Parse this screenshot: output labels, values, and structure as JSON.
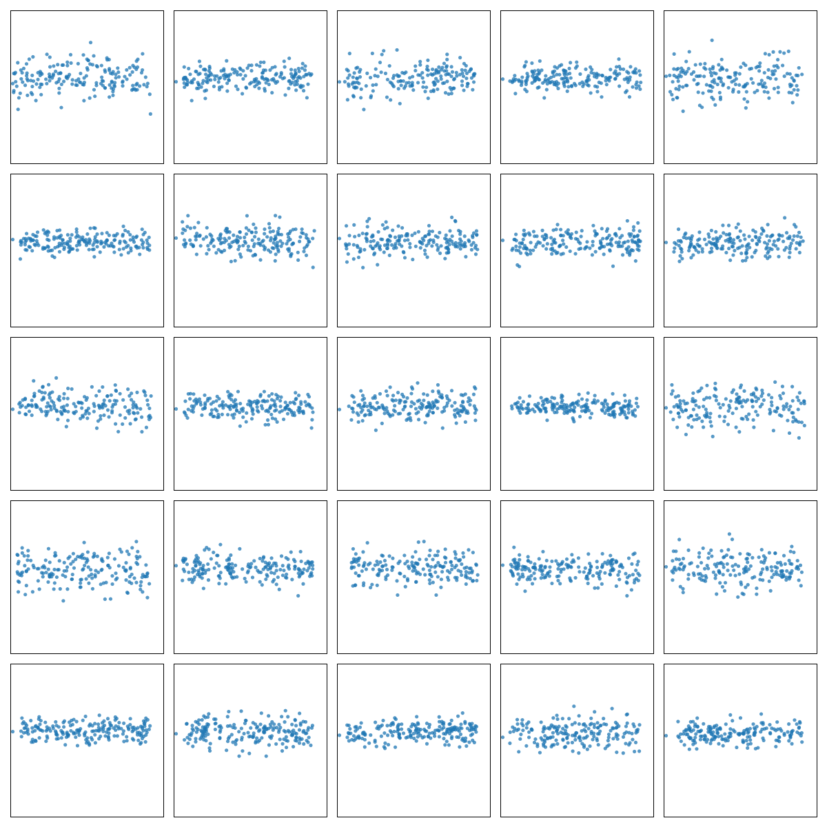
{
  "figure": {
    "rows": 5,
    "cols": 5,
    "point_color": "#1f77b4",
    "point_opacity": 0.75,
    "axes_visible": false,
    "ticks_visible": false
  },
  "chart_data": [
    {
      "type": "scatter",
      "panel": 1,
      "n": 180,
      "seed": 101,
      "xlim": [
        0,
        1
      ],
      "ylim": [
        -1,
        1
      ],
      "x_range": [
        0,
        0.93
      ],
      "y_center": 0.12,
      "y_spread": 0.16,
      "edge_point": true
    },
    {
      "type": "scatter",
      "panel": 2,
      "n": 190,
      "seed": 102,
      "xlim": [
        0,
        1
      ],
      "ylim": [
        -1,
        1
      ],
      "x_range": [
        0.05,
        0.92
      ],
      "y_center": 0.12,
      "y_spread": 0.1,
      "edge_point": true
    },
    {
      "type": "scatter",
      "panel": 3,
      "n": 180,
      "seed": 103,
      "xlim": [
        0,
        1
      ],
      "ylim": [
        -1,
        1
      ],
      "x_range": [
        0.03,
        0.92
      ],
      "y_center": 0.12,
      "y_spread": 0.14,
      "edge_point": true
    },
    {
      "type": "scatter",
      "panel": 4,
      "n": 190,
      "seed": 104,
      "xlim": [
        0,
        1
      ],
      "ylim": [
        -1,
        1
      ],
      "x_range": [
        0.04,
        0.93
      ],
      "y_center": 0.12,
      "y_spread": 0.1,
      "edge_point": true
    },
    {
      "type": "scatter",
      "panel": 5,
      "n": 180,
      "seed": 105,
      "xlim": [
        0,
        1
      ],
      "ylim": [
        -1,
        1
      ],
      "x_range": [
        0.02,
        0.93
      ],
      "y_center": 0.12,
      "y_spread": 0.17,
      "edge_point": true
    },
    {
      "type": "scatter",
      "panel": 6,
      "n": 190,
      "seed": 106,
      "xlim": [
        0,
        1
      ],
      "ylim": [
        -1,
        1
      ],
      "x_range": [
        0.05,
        0.92
      ],
      "y_center": 0.11,
      "y_spread": 0.1,
      "edge_point": true
    },
    {
      "type": "scatter",
      "panel": 7,
      "n": 190,
      "seed": 107,
      "xlim": [
        0,
        1
      ],
      "ylim": [
        -1,
        1
      ],
      "x_range": [
        0.04,
        0.93
      ],
      "y_center": 0.11,
      "y_spread": 0.12,
      "edge_point": true
    },
    {
      "type": "scatter",
      "panel": 8,
      "n": 190,
      "seed": 108,
      "xlim": [
        0,
        1
      ],
      "ylim": [
        -1,
        1
      ],
      "x_range": [
        0.04,
        0.93
      ],
      "y_center": 0.11,
      "y_spread": 0.12,
      "edge_point": true
    },
    {
      "type": "scatter",
      "panel": 9,
      "n": 190,
      "seed": 109,
      "xlim": [
        0,
        1
      ],
      "ylim": [
        -1,
        1
      ],
      "x_range": [
        0.06,
        0.93
      ],
      "y_center": 0.11,
      "y_spread": 0.11,
      "edge_point": true
    },
    {
      "type": "scatter",
      "panel": 10,
      "n": 190,
      "seed": 110,
      "xlim": [
        0,
        1
      ],
      "ylim": [
        -1,
        1
      ],
      "x_range": [
        0.05,
        0.92
      ],
      "y_center": 0.11,
      "y_spread": 0.11,
      "edge_point": true
    },
    {
      "type": "scatter",
      "panel": 11,
      "n": 180,
      "seed": 111,
      "xlim": [
        0,
        1
      ],
      "ylim": [
        -1,
        1
      ],
      "x_range": [
        0.04,
        0.93
      ],
      "y_center": 0.1,
      "y_spread": 0.14,
      "edge_point": true
    },
    {
      "type": "scatter",
      "panel": 12,
      "n": 190,
      "seed": 112,
      "xlim": [
        0,
        1
      ],
      "ylim": [
        -1,
        1
      ],
      "x_range": [
        0.05,
        0.92
      ],
      "y_center": 0.11,
      "y_spread": 0.1,
      "edge_point": true
    },
    {
      "type": "scatter",
      "panel": 13,
      "n": 190,
      "seed": 113,
      "xlim": [
        0,
        1
      ],
      "ylim": [
        -1,
        1
      ],
      "x_range": [
        0.06,
        0.92
      ],
      "y_center": 0.11,
      "y_spread": 0.11,
      "edge_point": true
    },
    {
      "type": "scatter",
      "panel": 14,
      "n": 190,
      "seed": 114,
      "xlim": [
        0,
        1
      ],
      "ylim": [
        -1,
        1
      ],
      "x_range": [
        0.06,
        0.92
      ],
      "y_center": 0.1,
      "y_spread": 0.08,
      "edge_point": false
    },
    {
      "type": "scatter",
      "panel": 15,
      "n": 180,
      "seed": 115,
      "xlim": [
        0,
        1
      ],
      "ylim": [
        -1,
        1
      ],
      "x_range": [
        0.03,
        0.93
      ],
      "y_center": 0.1,
      "y_spread": 0.16,
      "edge_point": true
    },
    {
      "type": "scatter",
      "panel": 16,
      "n": 180,
      "seed": 116,
      "xlim": [
        0,
        1
      ],
      "ylim": [
        -1,
        1
      ],
      "x_range": [
        0.03,
        0.92
      ],
      "y_center": 0.1,
      "y_spread": 0.17,
      "edge_point": false
    },
    {
      "type": "scatter",
      "panel": 17,
      "n": 190,
      "seed": 117,
      "xlim": [
        0,
        1
      ],
      "ylim": [
        -1,
        1
      ],
      "x_range": [
        0.04,
        0.92
      ],
      "y_center": 0.11,
      "y_spread": 0.12,
      "edge_point": true
    },
    {
      "type": "scatter",
      "panel": 18,
      "n": 180,
      "seed": 118,
      "xlim": [
        0,
        1
      ],
      "ylim": [
        -1,
        1
      ],
      "x_range": [
        0.08,
        0.93
      ],
      "y_center": 0.12,
      "y_spread": 0.12,
      "edge_point": false
    },
    {
      "type": "scatter",
      "panel": 19,
      "n": 190,
      "seed": 119,
      "xlim": [
        0,
        1
      ],
      "ylim": [
        -1,
        1
      ],
      "x_range": [
        0.05,
        0.93
      ],
      "y_center": 0.11,
      "y_spread": 0.12,
      "edge_point": true
    },
    {
      "type": "scatter",
      "panel": 20,
      "n": 180,
      "seed": 120,
      "xlim": [
        0,
        1
      ],
      "ylim": [
        -1,
        1
      ],
      "x_range": [
        0.03,
        0.92
      ],
      "y_center": 0.1,
      "y_spread": 0.16,
      "edge_point": true
    },
    {
      "type": "scatter",
      "panel": 21,
      "n": 200,
      "seed": 121,
      "xlim": [
        0,
        1
      ],
      "ylim": [
        -1,
        1
      ],
      "x_range": [
        0.05,
        0.93
      ],
      "y_center": 0.12,
      "y_spread": 0.09,
      "edge_point": true
    },
    {
      "type": "scatter",
      "panel": 22,
      "n": 200,
      "seed": 122,
      "xlim": [
        0,
        1
      ],
      "ylim": [
        -1,
        1
      ],
      "x_range": [
        0.05,
        0.92
      ],
      "y_center": 0.12,
      "y_spread": 0.11,
      "edge_point": true
    },
    {
      "type": "scatter",
      "panel": 23,
      "n": 200,
      "seed": 123,
      "xlim": [
        0,
        1
      ],
      "ylim": [
        -1,
        1
      ],
      "x_range": [
        0.05,
        0.93
      ],
      "y_center": 0.11,
      "y_spread": 0.09,
      "edge_point": true
    },
    {
      "type": "scatter",
      "panel": 24,
      "n": 190,
      "seed": 124,
      "xlim": [
        0,
        1
      ],
      "ylim": [
        -1,
        1
      ],
      "x_range": [
        0.04,
        0.92
      ],
      "y_center": 0.1,
      "y_spread": 0.12,
      "edge_point": true
    },
    {
      "type": "scatter",
      "panel": 25,
      "n": 190,
      "seed": 125,
      "xlim": [
        0,
        1
      ],
      "ylim": [
        -1,
        1
      ],
      "x_range": [
        0.08,
        0.92
      ],
      "y_center": 0.1,
      "y_spread": 0.1,
      "edge_point": true
    }
  ]
}
